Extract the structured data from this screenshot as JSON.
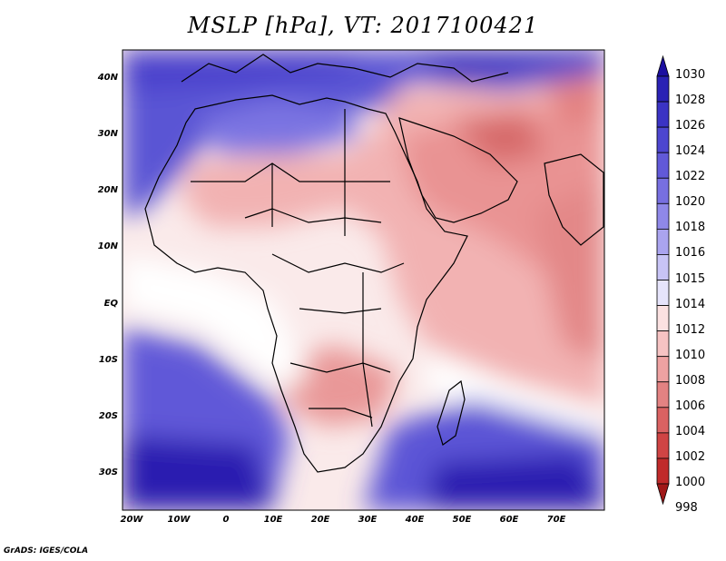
{
  "title": "MSLP [hPa], VT: 2017100421",
  "credit": "GrADS: IGES/COLA",
  "lat_labels": [
    "40N",
    "30N",
    "20N",
    "10N",
    "EQ",
    "10S",
    "20S",
    "30S"
  ],
  "lon_labels": [
    "20W",
    "10W",
    "0",
    "10E",
    "20E",
    "30E",
    "40E",
    "50E",
    "60E",
    "70E"
  ],
  "colorbar": {
    "levels": [
      "1030",
      "1028",
      "1026",
      "1024",
      "1022",
      "1020",
      "1018",
      "1016",
      "1015",
      "1014",
      "1012",
      "1010",
      "1008",
      "1006",
      "1004",
      "1002",
      "1000",
      "998"
    ],
    "colors": [
      "#1c0fa0",
      "#2a21b4",
      "#3b33c4",
      "#4d46cf",
      "#6159d8",
      "#776fe0",
      "#8f88e8",
      "#aaa4ef",
      "#c8c4f6",
      "#e6e4fb",
      "#fbe1e1",
      "#f6c3c3",
      "#eea2a2",
      "#e38282",
      "#da6262",
      "#cf4444",
      "#c02a2a",
      "#a01818"
    ]
  }
}
